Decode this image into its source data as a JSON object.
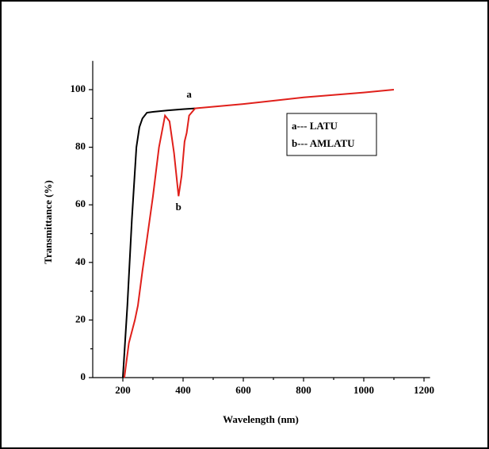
{
  "chart_data": {
    "type": "line",
    "x_label": "Wavelength (nm)",
    "y_label": "Transmittance (%)",
    "xlim": [
      100,
      1220
    ],
    "ylim": [
      0,
      110
    ],
    "xticks": [
      200,
      400,
      600,
      800,
      1000,
      1200
    ],
    "yticks": [
      0,
      20,
      40,
      60,
      80,
      100
    ],
    "legend": "upper right",
    "annotations": [
      "a",
      "b"
    ],
    "series": [
      {
        "name": "a--- LATU",
        "color": "#000000",
        "x": [
          200,
          215,
          230,
          245,
          255,
          265,
          280,
          300,
          350,
          400,
          440
        ],
        "values": [
          0,
          25,
          55,
          80,
          87,
          90,
          92,
          92.3,
          92.8,
          93.2,
          93.5
        ]
      },
      {
        "name": "b--- AMLATU",
        "color": "#e0201b",
        "x": [
          205,
          220,
          240,
          250,
          265,
          280,
          300,
          320,
          340,
          355,
          370,
          385,
          395,
          405,
          412,
          420,
          440,
          600,
          800,
          1000,
          1100
        ],
        "values": [
          0,
          12,
          20,
          25,
          37,
          48,
          63,
          80,
          91,
          89,
          78,
          63,
          70,
          82,
          85,
          91,
          93.5,
          95,
          97.3,
          99,
          100
        ]
      }
    ]
  }
}
